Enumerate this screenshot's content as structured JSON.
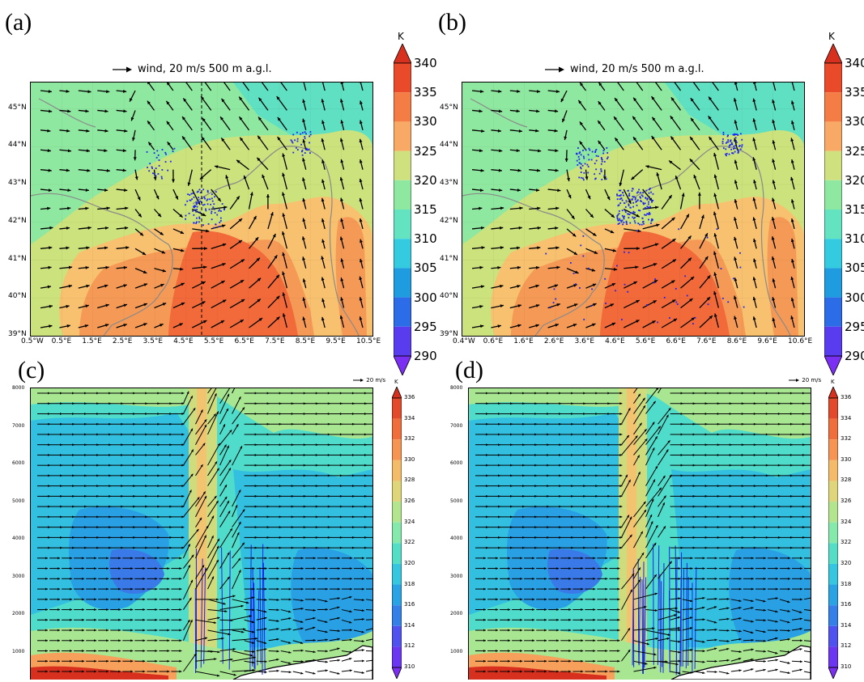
{
  "panels": {
    "a": "(a)",
    "b": "(b)",
    "c": "(c)",
    "d": "(d)"
  },
  "map_title": {
    "wind_label": "wind, 20 m/s 500 m a.g.l."
  },
  "section_title": {
    "wind_label": "20 m/s"
  },
  "colorbar_top": {
    "unit": "K",
    "labels": [
      "340",
      "335",
      "330",
      "325",
      "320",
      "315",
      "310",
      "305",
      "300",
      "295",
      "290"
    ]
  },
  "colorbar_bottom": {
    "unit": "K",
    "labels": [
      "336",
      "334",
      "332",
      "330",
      "328",
      "326",
      "324",
      "322",
      "320",
      "318",
      "316",
      "314",
      "312",
      "310"
    ]
  },
  "colors": {
    "k340": "#d7301f",
    "k335": "#f26a3a",
    "k330": "#f59a56",
    "k325": "#f8c170",
    "k320": "#cce27c",
    "k315": "#8fe8a0",
    "k310": "#5fe0c2",
    "k305": "#30c6dd",
    "k300": "#1d99df",
    "k295": "#2f6ae6",
    "k290": "#6f2cf0",
    "precip": "#1a22f2"
  },
  "chart_data": [
    {
      "type": "heatmap",
      "panel": "(a)",
      "title": "wind, 20 m/s 500 m a.g.l.",
      "x_ticks": [
        "0.5°W",
        "0.5°E",
        "1.5°E",
        "2.5°E",
        "3.5°E",
        "4.5°E",
        "5.5°E",
        "6.5°E",
        "7.5°E",
        "8.5°E",
        "9.5°E",
        "10.5°E"
      ],
      "y_ticks": [
        "39°N",
        "40°N",
        "41°N",
        "42°N",
        "43°N",
        "44°N",
        "45°N"
      ],
      "xlim": [
        -0.5,
        10.5
      ],
      "ylim": [
        39,
        45.7
      ],
      "colorbar_unit": "K",
      "colorbar_levels": [
        290,
        295,
        300,
        305,
        310,
        315,
        320,
        325,
        330,
        335,
        340
      ],
      "section_line_lon": 5
    },
    {
      "type": "heatmap",
      "panel": "(b)",
      "title": "wind, 20 m/s 500 m a.g.l.",
      "x_ticks": [
        "0.4°W",
        "0.6°E",
        "1.6°E",
        "2.6°E",
        "3.6°E",
        "4.6°E",
        "5.6°E",
        "6.6°E",
        "7.6°E",
        "8.6°E",
        "9.6°E",
        "10.6°E"
      ],
      "y_ticks": [
        "39°N",
        "40°N",
        "41°N",
        "42°N",
        "43°N",
        "44°N",
        "45°N"
      ],
      "xlim": [
        -0.4,
        10.6
      ],
      "ylim": [
        39,
        45.7
      ],
      "colorbar_unit": "K",
      "colorbar_levels": [
        290,
        295,
        300,
        305,
        310,
        315,
        320,
        325,
        330,
        335,
        340
      ]
    },
    {
      "type": "heatmap",
      "panel": "(c)",
      "title": "20 m/s",
      "y_ticks": [
        "1000",
        "2000",
        "3000",
        "4000",
        "5000",
        "6000",
        "7000",
        "8000"
      ],
      "ylim": [
        0,
        8000
      ],
      "colorbar_unit": "K",
      "colorbar_levels": [
        310,
        312,
        314,
        316,
        318,
        320,
        322,
        324,
        326,
        328,
        330,
        332,
        334,
        336
      ]
    },
    {
      "type": "heatmap",
      "panel": "(d)",
      "title": "20 m/s",
      "y_ticks": [
        "1000",
        "2000",
        "3000",
        "4000",
        "5000",
        "6000",
        "7000",
        "8000"
      ],
      "ylim": [
        0,
        8000
      ],
      "colorbar_unit": "K",
      "colorbar_levels": [
        310,
        312,
        314,
        316,
        318,
        320,
        322,
        324,
        326,
        328,
        330,
        332,
        334,
        336
      ]
    }
  ]
}
